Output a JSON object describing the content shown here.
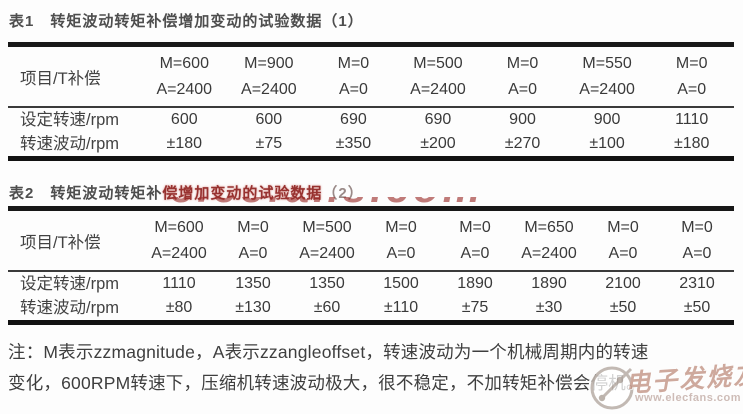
{
  "table1": {
    "title": "表1　转矩波动转矩补偿增加变动的试验数据（1）",
    "corner": "项目/T补偿",
    "columns": [
      {
        "m": "M=600",
        "a": "A=2400"
      },
      {
        "m": "M=900",
        "a": "A=2400"
      },
      {
        "m": "M=0",
        "a": "A=0"
      },
      {
        "m": "M=500",
        "a": "A=2400"
      },
      {
        "m": "M=0",
        "a": "A=0"
      },
      {
        "m": "M=550",
        "a": "A=2400"
      },
      {
        "m": "M=0",
        "a": "A=0"
      }
    ],
    "rows": [
      {
        "label": "设定转速/rpm",
        "values": [
          "600",
          "600",
          "690",
          "690",
          "900",
          "900",
          "1110"
        ]
      },
      {
        "label": "转速波动/rpm",
        "values": [
          "±180",
          "±75",
          "±350",
          "±200",
          "±270",
          "±100",
          "±180"
        ]
      }
    ]
  },
  "table2": {
    "title_gray": "表2　转矩波动转矩补",
    "title_red": "偿增加变动的试验数据",
    "title_suffix": "（2）",
    "corner": "项目/T补偿",
    "columns": [
      {
        "m": "M=600",
        "a": "A=2400"
      },
      {
        "m": "M=0",
        "a": "A=0"
      },
      {
        "m": "M=500",
        "a": "A=2400"
      },
      {
        "m": "M=0",
        "a": "A=0"
      },
      {
        "m": "M=0",
        "a": "A=0"
      },
      {
        "m": "M=650",
        "a": "A=2400"
      },
      {
        "m": "M=0",
        "a": "A=0"
      },
      {
        "m": "M=0",
        "a": "A=0"
      }
    ],
    "rows": [
      {
        "label": "设定转速/rpm",
        "values": [
          "1110",
          "1350",
          "1350",
          "1500",
          "1890",
          "1890",
          "2100",
          "2310"
        ]
      },
      {
        "label": "转速波动/rpm",
        "values": [
          "±80",
          "±130",
          "±60",
          "±110",
          "±75",
          "±30",
          "±50",
          "±50"
        ]
      }
    ]
  },
  "note": {
    "line1": "注：M表示zzmagnitude，A表示zzangleoffset，转速波动为一个机械周期内的转速",
    "line2": "变化，600RPM转速下，压缩机转速波动极大，很不稳定，不加转矩补偿会停机。"
  },
  "watermark": {
    "center_text": "elecfans.com",
    "brand": "电子发烧友",
    "url": "www.elecfans.com",
    "red": "#9c2d2a",
    "pink": "#c9a093"
  }
}
